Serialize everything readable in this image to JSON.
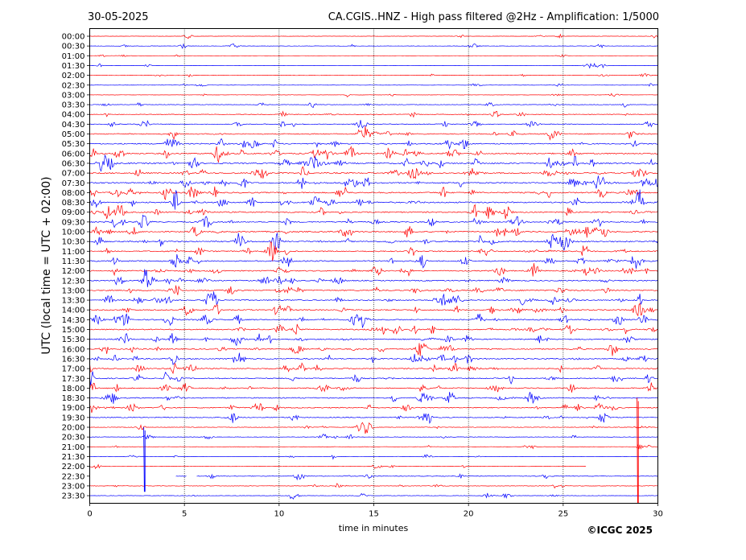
{
  "header": {
    "date": "30-05-2025",
    "title": "CA.CGIS..HNZ - High pass filtered @2Hz - Amplification: 1/5000"
  },
  "footer": {
    "copyright": "©ICGC 2025"
  },
  "colors": {
    "trace_red": "#ff0000",
    "trace_blue": "#0000ff",
    "grid": "#000000",
    "background": "#ffffff"
  },
  "chart_data": {
    "type": "line",
    "title": "CA.CGIS..HNZ - High pass filtered @2Hz - Amplification: 1/5000",
    "xlabel": "time in minutes",
    "ylabel": "UTC (local time = UTC + 02:00)",
    "xlim": [
      0,
      30
    ],
    "xticks": [
      0,
      5,
      10,
      15,
      20,
      25,
      30
    ],
    "vertical_gridlines": [
      5,
      10,
      15,
      20,
      25
    ],
    "grid": "dotted vertical lines at 5-minute intervals",
    "row_labels": [
      "00:00",
      "00:30",
      "01:00",
      "01:30",
      "02:00",
      "02:30",
      "03:00",
      "03:30",
      "04:00",
      "04:30",
      "05:00",
      "05:30",
      "06:00",
      "06:30",
      "07:00",
      "07:30",
      "08:00",
      "08:30",
      "09:00",
      "09:30",
      "10:00",
      "10:30",
      "11:00",
      "11:30",
      "12:00",
      "12:30",
      "13:00",
      "13:30",
      "14:00",
      "14:30",
      "15:00",
      "15:30",
      "16:00",
      "16:30",
      "17:00",
      "17:30",
      "18:00",
      "18:30",
      "19:00",
      "19:30",
      "20:00",
      "20:30",
      "21:00",
      "21:30",
      "22:00",
      "22:30",
      "23:00",
      "23:30"
    ],
    "row_color_cycle": [
      "red",
      "blue"
    ],
    "row_noise_level": [
      0.5,
      0.6,
      0.4,
      0.5,
      0.6,
      0.5,
      0.5,
      0.8,
      0.9,
      1.2,
      1.6,
      1.8,
      2.0,
      2.2,
      2.0,
      2.0,
      2.0,
      2.0,
      2.0,
      1.8,
      2.0,
      1.9,
      1.8,
      1.8,
      1.8,
      1.8,
      1.8,
      1.8,
      1.8,
      1.8,
      1.8,
      1.8,
      1.8,
      1.8,
      1.7,
      1.6,
      1.6,
      1.6,
      1.6,
      1.3,
      0.9,
      0.7,
      0.6,
      0.6,
      0.5,
      0.9,
      0.8,
      0.7
    ],
    "spikes": [
      {
        "row": 40,
        "minute": 2.85,
        "direction": "down",
        "extent_rows": 6.6,
        "color": "blue"
      },
      {
        "row": 37,
        "minute": 28.9,
        "direction": "down",
        "extent_rows": 10.8,
        "color": "red"
      }
    ],
    "trace_ends": [
      {
        "row": 44,
        "end_minute": 26.2
      }
    ],
    "trace_gaps": [
      {
        "row": 45,
        "start_minute": 0,
        "end_minute": 4.5
      },
      {
        "row": 45,
        "start_minute": 5.1,
        "end_minute": 5.6
      }
    ]
  }
}
